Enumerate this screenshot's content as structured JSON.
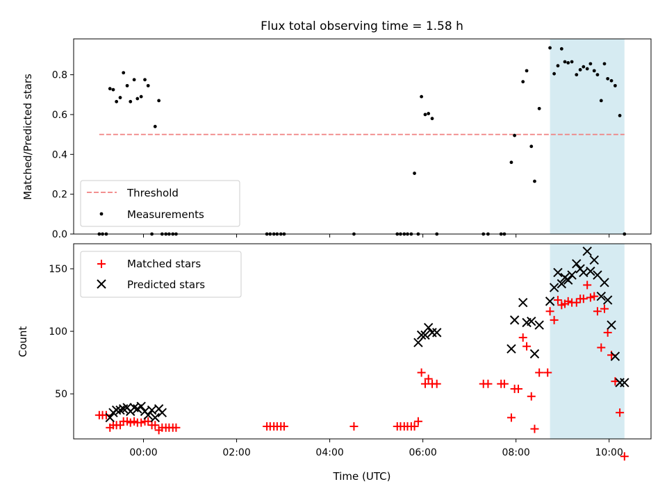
{
  "title": "Flux total observing time = 1.58 h",
  "xlabel": "Time (UTC)",
  "x_tick_labels": [
    "00:00",
    "02:00",
    "04:00",
    "06:00",
    "08:00",
    "10:00"
  ],
  "colors": {
    "threshold": "#f08080",
    "measurement": "#000000",
    "matched": "#ff0000",
    "predicted": "#000000",
    "highlight": "#add8e6"
  },
  "chart_data": [
    {
      "type": "scatter",
      "panel": "top",
      "ylabel": "Matched/Predicted stars",
      "xlim_hours": [
        -1.5,
        10.9
      ],
      "ylim": [
        0,
        0.98
      ],
      "y_ticks": [
        "0.0",
        "0.2",
        "0.4",
        "0.6",
        "0.8"
      ],
      "y_tick_values": [
        0,
        0.2,
        0.4,
        0.6,
        0.8
      ],
      "highlight_span_hours": [
        8.73,
        10.33
      ],
      "legend": {
        "position": "lower-left",
        "entries": [
          "Threshold",
          "Measurements"
        ]
      },
      "series": [
        {
          "name": "Threshold",
          "style": "dashed-line",
          "x_hours": [
            -0.95,
            10.33
          ],
          "values": [
            0.5,
            0.5
          ]
        },
        {
          "name": "Measurements",
          "style": "dot",
          "x_hours": [
            -0.95,
            -0.88,
            -0.8,
            -0.72,
            -0.65,
            -0.58,
            -0.5,
            -0.43,
            -0.35,
            -0.28,
            -0.2,
            -0.13,
            -0.05,
            0.03,
            0.1,
            0.18,
            0.25,
            0.33,
            0.4,
            0.48,
            0.55,
            0.63,
            0.7,
            2.65,
            2.72,
            2.8,
            2.87,
            2.95,
            3.02,
            4.52,
            5.45,
            5.52,
            5.6,
            5.67,
            5.75,
            5.82,
            5.9,
            5.97,
            6.05,
            6.12,
            6.2,
            6.3,
            7.3,
            7.4,
            7.68,
            7.75,
            7.9,
            7.97,
            8.15,
            8.23,
            8.33,
            8.4,
            8.5,
            8.73,
            8.82,
            8.9,
            8.98,
            9.05,
            9.12,
            9.2,
            9.3,
            9.38,
            9.45,
            9.53,
            9.6,
            9.68,
            9.75,
            9.83,
            9.9,
            9.97,
            10.05,
            10.13,
            10.23,
            10.33
          ],
          "values": [
            0,
            0,
            0,
            0.73,
            0.725,
            0.665,
            0.685,
            0.81,
            0.745,
            0.665,
            0.775,
            0.68,
            0.69,
            0.775,
            0.745,
            0,
            0.54,
            0.67,
            0,
            0,
            0,
            0,
            0,
            0,
            0,
            0,
            0,
            0,
            0,
            0,
            0,
            0,
            0,
            0,
            0,
            0.305,
            0,
            0.69,
            0.6,
            0.605,
            0.58,
            0,
            0,
            0,
            0,
            0,
            0.36,
            0.495,
            0.765,
            0.82,
            0.44,
            0.265,
            0.63,
            0.935,
            0.805,
            0.845,
            0.93,
            0.865,
            0.86,
            0.865,
            0.8,
            0.825,
            0.84,
            0.83,
            0.855,
            0.82,
            0.8,
            0.67,
            0.855,
            0.78,
            0.77,
            0.745,
            0.595,
            0
          ]
        }
      ]
    },
    {
      "type": "scatter",
      "panel": "bottom",
      "ylabel": "Count",
      "xlim_hours": [
        -1.5,
        10.9
      ],
      "ylim": [
        14,
        170
      ],
      "y_ticks": [
        "50",
        "100",
        "150"
      ],
      "y_tick_values": [
        50,
        100,
        150
      ],
      "highlight_span_hours": [
        8.73,
        10.33
      ],
      "legend": {
        "position": "upper-left",
        "entries": [
          "Matched stars",
          "Predicted stars"
        ]
      },
      "series": [
        {
          "name": "Matched stars",
          "marker": "plus",
          "x_hours": [
            -0.95,
            -0.88,
            -0.8,
            -0.72,
            -0.65,
            -0.58,
            -0.5,
            -0.43,
            -0.35,
            -0.28,
            -0.2,
            -0.13,
            -0.05,
            0.03,
            0.1,
            0.18,
            0.25,
            0.33,
            0.4,
            0.48,
            0.55,
            0.63,
            0.7,
            2.65,
            2.72,
            2.8,
            2.87,
            2.95,
            3.02,
            4.52,
            5.45,
            5.52,
            5.6,
            5.67,
            5.75,
            5.82,
            5.9,
            5.97,
            6.05,
            6.12,
            6.2,
            6.3,
            7.3,
            7.4,
            7.68,
            7.75,
            7.9,
            7.97,
            8.05,
            8.15,
            8.23,
            8.33,
            8.4,
            8.5,
            8.68,
            8.73,
            8.82,
            8.9,
            8.98,
            9.05,
            9.12,
            9.2,
            9.3,
            9.38,
            9.45,
            9.53,
            9.6,
            9.68,
            9.75,
            9.83,
            9.9,
            9.97,
            10.05,
            10.13,
            10.23,
            10.33
          ],
          "values": [
            33,
            33,
            33,
            23,
            25,
            25,
            25,
            28,
            28,
            27,
            28,
            27,
            27,
            28,
            28,
            25,
            25,
            21,
            23,
            23,
            23,
            23,
            23,
            24,
            24,
            24,
            24,
            24,
            24,
            24,
            24,
            24,
            24,
            24,
            24,
            24,
            28,
            67,
            58,
            62,
            58,
            58,
            58,
            58,
            58,
            58,
            31,
            54,
            54,
            95,
            88,
            48,
            22,
            67,
            67,
            116,
            109,
            125,
            121,
            122,
            124,
            123,
            123,
            126,
            126,
            137,
            127,
            128,
            116,
            87,
            118,
            99,
            81,
            60,
            35,
            0
          ]
        },
        {
          "name": "Predicted stars",
          "marker": "x",
          "x_hours": [
            -0.72,
            -0.65,
            -0.58,
            -0.5,
            -0.43,
            -0.35,
            -0.28,
            -0.2,
            -0.13,
            -0.05,
            0.03,
            0.1,
            0.18,
            0.25,
            0.33,
            0.4,
            5.9,
            5.97,
            6.05,
            6.12,
            6.2,
            6.3,
            7.9,
            7.97,
            8.15,
            8.23,
            8.33,
            8.4,
            8.5,
            8.73,
            8.82,
            8.9,
            8.98,
            9.05,
            9.12,
            9.2,
            9.3,
            9.38,
            9.45,
            9.53,
            9.6,
            9.68,
            9.75,
            9.83,
            9.9,
            9.97,
            10.05,
            10.13,
            10.23,
            10.33
          ],
          "values": [
            31,
            35,
            37,
            37,
            38,
            39,
            36,
            39,
            38,
            40,
            36,
            33,
            37,
            31,
            38,
            35,
            91,
            97,
            97,
            103,
            99,
            99,
            86,
            109,
            123,
            107,
            108,
            82,
            105,
            124,
            135,
            147,
            138,
            143,
            141,
            145,
            154,
            150,
            147,
            164,
            148,
            157,
            145,
            128,
            139,
            125,
            105,
            80,
            59,
            59
          ]
        }
      ]
    }
  ]
}
